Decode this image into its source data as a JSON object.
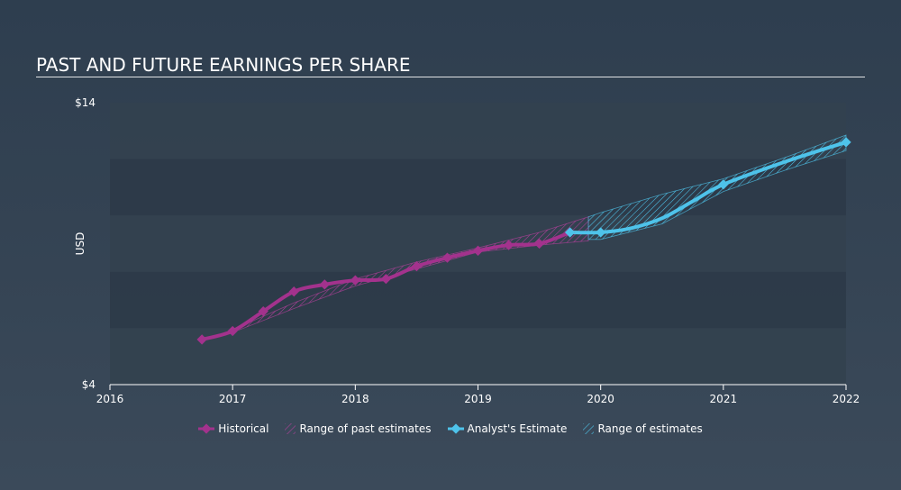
{
  "title": "PAST AND FUTURE EARNINGS PER SHARE",
  "chart_data": {
    "type": "line",
    "ylabel": "USD",
    "y_tick_labels": [
      "$14",
      "$4"
    ],
    "ylim": [
      4,
      14
    ],
    "x_tick_labels": [
      "2016",
      "2017",
      "2018",
      "2019",
      "2020",
      "2021",
      "2022"
    ],
    "xlim": [
      2016,
      2022
    ],
    "grid": "horizontal bands",
    "series": [
      {
        "name": "Historical",
        "color": "#a3328d",
        "x": [
          2016.75,
          2017.0,
          2017.25,
          2017.5,
          2017.75,
          2018.0,
          2018.25,
          2018.5,
          2018.75,
          2019.0,
          2019.25,
          2019.5,
          2019.75
        ],
        "y": [
          5.6,
          5.9,
          6.6,
          7.3,
          7.55,
          7.7,
          7.75,
          8.2,
          8.5,
          8.75,
          8.95,
          9.0,
          9.4
        ]
      },
      {
        "name": "Analyst's Estimate",
        "color": "#4ec3ea",
        "x": [
          2019.75,
          2020.0,
          2020.25,
          2020.5,
          2020.75,
          2021.0,
          2021.5,
          2022.0
        ],
        "y": [
          9.4,
          9.4,
          9.55,
          9.9,
          10.5,
          11.1,
          11.9,
          12.6
        ]
      }
    ],
    "past_estimate_range": {
      "name": "Range of past estimates",
      "x": [
        2017.0,
        2017.5,
        2018.0,
        2018.5,
        2019.0,
        2019.5,
        2019.9
      ],
      "upper": [
        5.95,
        6.9,
        7.75,
        8.35,
        8.85,
        9.4,
        9.95
      ],
      "lower": [
        5.85,
        6.7,
        7.5,
        8.1,
        8.7,
        8.95,
        9.1
      ]
    },
    "estimate_range": {
      "name": "Range of estimates",
      "x": [
        2019.9,
        2020.0,
        2020.5,
        2021.0,
        2021.5,
        2022.0
      ],
      "upper": [
        9.95,
        10.1,
        10.75,
        11.3,
        12.05,
        12.85
      ],
      "lower": [
        9.15,
        9.15,
        9.7,
        10.85,
        11.6,
        12.3
      ]
    },
    "legend": [
      {
        "label": "Historical",
        "color": "#a3328d",
        "kind": "marker"
      },
      {
        "label": "Range of past estimates",
        "color": "#a3328d",
        "kind": "hatch"
      },
      {
        "label": "Analyst's Estimate",
        "color": "#4ec3ea",
        "kind": "marker"
      },
      {
        "label": "Range of estimates",
        "color": "#4ec3ea",
        "kind": "hatch"
      }
    ]
  }
}
